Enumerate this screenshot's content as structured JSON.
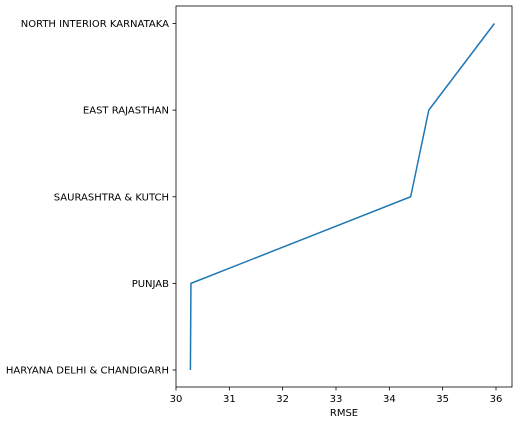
{
  "chart_data": {
    "type": "line",
    "title": "",
    "xlabel": "RMSE",
    "ylabel": "",
    "xlim": [
      30,
      36.3
    ],
    "grid": false,
    "x_ticks": [
      "30",
      "31",
      "32",
      "33",
      "34",
      "35",
      "36"
    ],
    "categories": [
      "HARYANA DELHI & CHANDIGARH",
      "PUNJAB",
      "SAURASHTRA & KUTCH",
      "EAST RAJASTHAN",
      "NORTH INTERIOR KARNATAKA"
    ],
    "series": [
      {
        "color": "#1f77b4",
        "values": [
          30.27,
          30.28,
          34.4,
          34.74,
          35.97
        ]
      }
    ]
  }
}
